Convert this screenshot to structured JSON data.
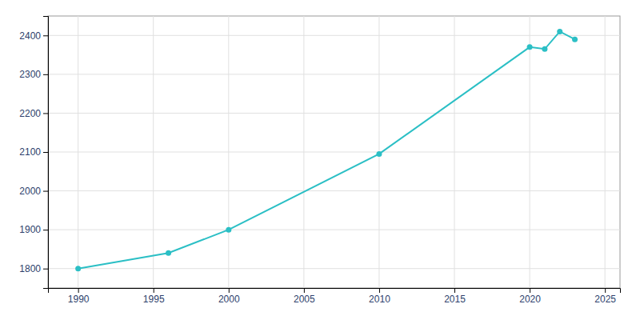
{
  "chart_data": {
    "type": "line",
    "x": [
      1990,
      1996,
      2000,
      2010,
      2020,
      2021,
      2022,
      2023
    ],
    "values": [
      1800,
      1840,
      1900,
      2095,
      2370,
      2365,
      2410,
      2390
    ],
    "color": "#2BBFC5",
    "marker": "circle",
    "xlim": [
      1988,
      2026
    ],
    "ylim": [
      1750,
      2450
    ],
    "xticks": [
      1990,
      1995,
      2000,
      2005,
      2010,
      2015,
      2020,
      2025
    ],
    "yticks": [
      1800,
      1900,
      2000,
      2100,
      2200,
      2300,
      2400
    ],
    "grid": true
  }
}
